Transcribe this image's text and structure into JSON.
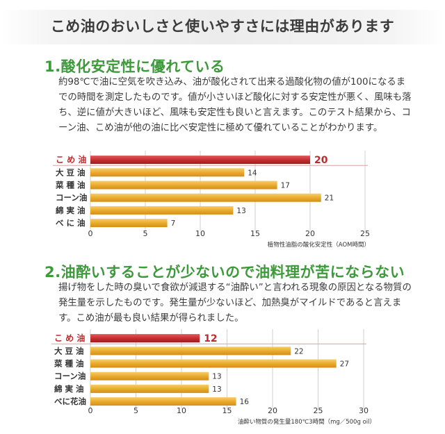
{
  "header": {
    "title": "こめ油のおいしさと使いやすさには理由があります"
  },
  "section1": {
    "title": "1.酸化安定性に優れている",
    "paragraph": "約98℃で油に空気を吹き込み、油が酸化されて出来る過酸化物の値が100になるまでの時間を測定したものです。値が小さいほど酸化に対する安定性が悪く、風味も落ち、逆に値が大きいほど、風味も安定性も良いと言えます。このテスト結果から、コーン油、こめ油が他の油に比べ安定性に極めて優れていることがわかります。"
  },
  "section2": {
    "title": "2.油酔いすることが少ないので油料理が苦にならない",
    "paragraph": "揚げ物をした時の臭いで食欲が減退する“油酔い”と言われる現象の原因となる物質の発生量を示したものです。発生量が少ないほど、加熱臭がマイルドであると言えます。こめ油が最も良い結果が得られました。"
  },
  "colors": {
    "highlight": "#c0292c",
    "bar": "#e8a82a",
    "bar_light": "#f6cd6a",
    "title_green": "#3d9a3a"
  },
  "chart_data": [
    {
      "type": "bar",
      "orientation": "horizontal",
      "title": "",
      "categories": [
        "こ め 油",
        "大 豆 油",
        "菜 種 油",
        "コーン油",
        "綿 実 油",
        "べ に 油"
      ],
      "values": [
        20,
        14,
        17,
        21,
        13,
        7
      ],
      "highlight_index": 0,
      "xlim": [
        0,
        25
      ],
      "xticks": [
        "0",
        "5",
        "10",
        "15",
        "20",
        "25"
      ],
      "xlabel": "植物性油脂の酸化安定性（AOM時間）",
      "ylabel": "",
      "grid": true
    },
    {
      "type": "bar",
      "orientation": "horizontal",
      "title": "",
      "categories": [
        "こ め 油",
        "大 豆 油",
        "菜 種 油",
        "コーン油",
        "綿 実 油",
        "べに花油"
      ],
      "values": [
        12,
        22,
        27,
        13,
        13,
        16
      ],
      "highlight_index": 0,
      "xlim": [
        0,
        30
      ],
      "xticks": [
        "0",
        "5",
        "10",
        "15",
        "20",
        "25",
        "30"
      ],
      "xlabel": "油酔い物質の発生量180℃3時間（mg／500g oil）",
      "ylabel": "",
      "grid": true
    }
  ]
}
